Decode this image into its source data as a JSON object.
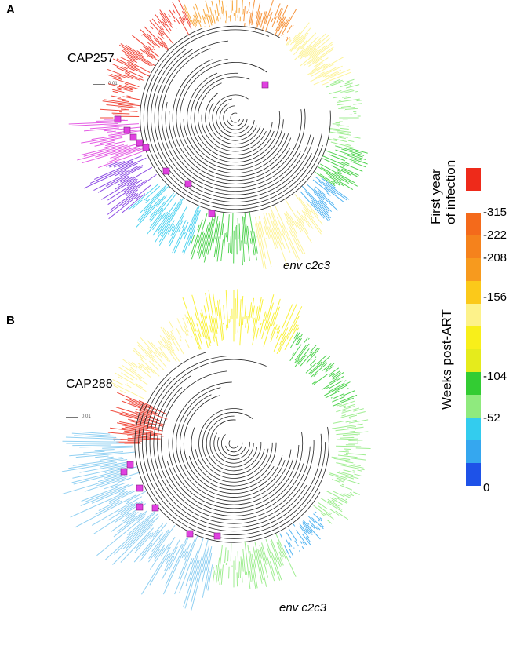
{
  "panels": [
    {
      "letter": "A",
      "name": "CAP257",
      "gene": "env c2c3",
      "scale": "0.01"
    },
    {
      "letter": "B",
      "name": "CAP288",
      "gene": "env c2c3",
      "scale": "0.01"
    }
  ],
  "legend": {
    "first_year_title": "First year of infection",
    "first_year_line1": "First year",
    "first_year_line2": "of infection",
    "first_year_color": "#ee2a1a",
    "weeks_title": "Weeks post-ART",
    "ticks": [
      "-315",
      "-222",
      "-208",
      "-156",
      "-104",
      "-52",
      "0"
    ],
    "bands": [
      {
        "color": "#f46a1b"
      },
      {
        "color": "#f5821c"
      },
      {
        "color": "#f79a1e"
      },
      {
        "color": "#fbc91a"
      },
      {
        "color": "#fdf28a"
      },
      {
        "color": "#f8ef1a"
      },
      {
        "color": "#e5eb1c"
      },
      {
        "color": "#33cc33"
      },
      {
        "color": "#8fea7e"
      },
      {
        "color": "#33ccee"
      },
      {
        "color": "#35a7ef"
      },
      {
        "color": "#1e52e8"
      }
    ]
  },
  "highlight_colors": {
    "marker": "#e040e0",
    "purple_clade": "#7a2ee0"
  }
}
